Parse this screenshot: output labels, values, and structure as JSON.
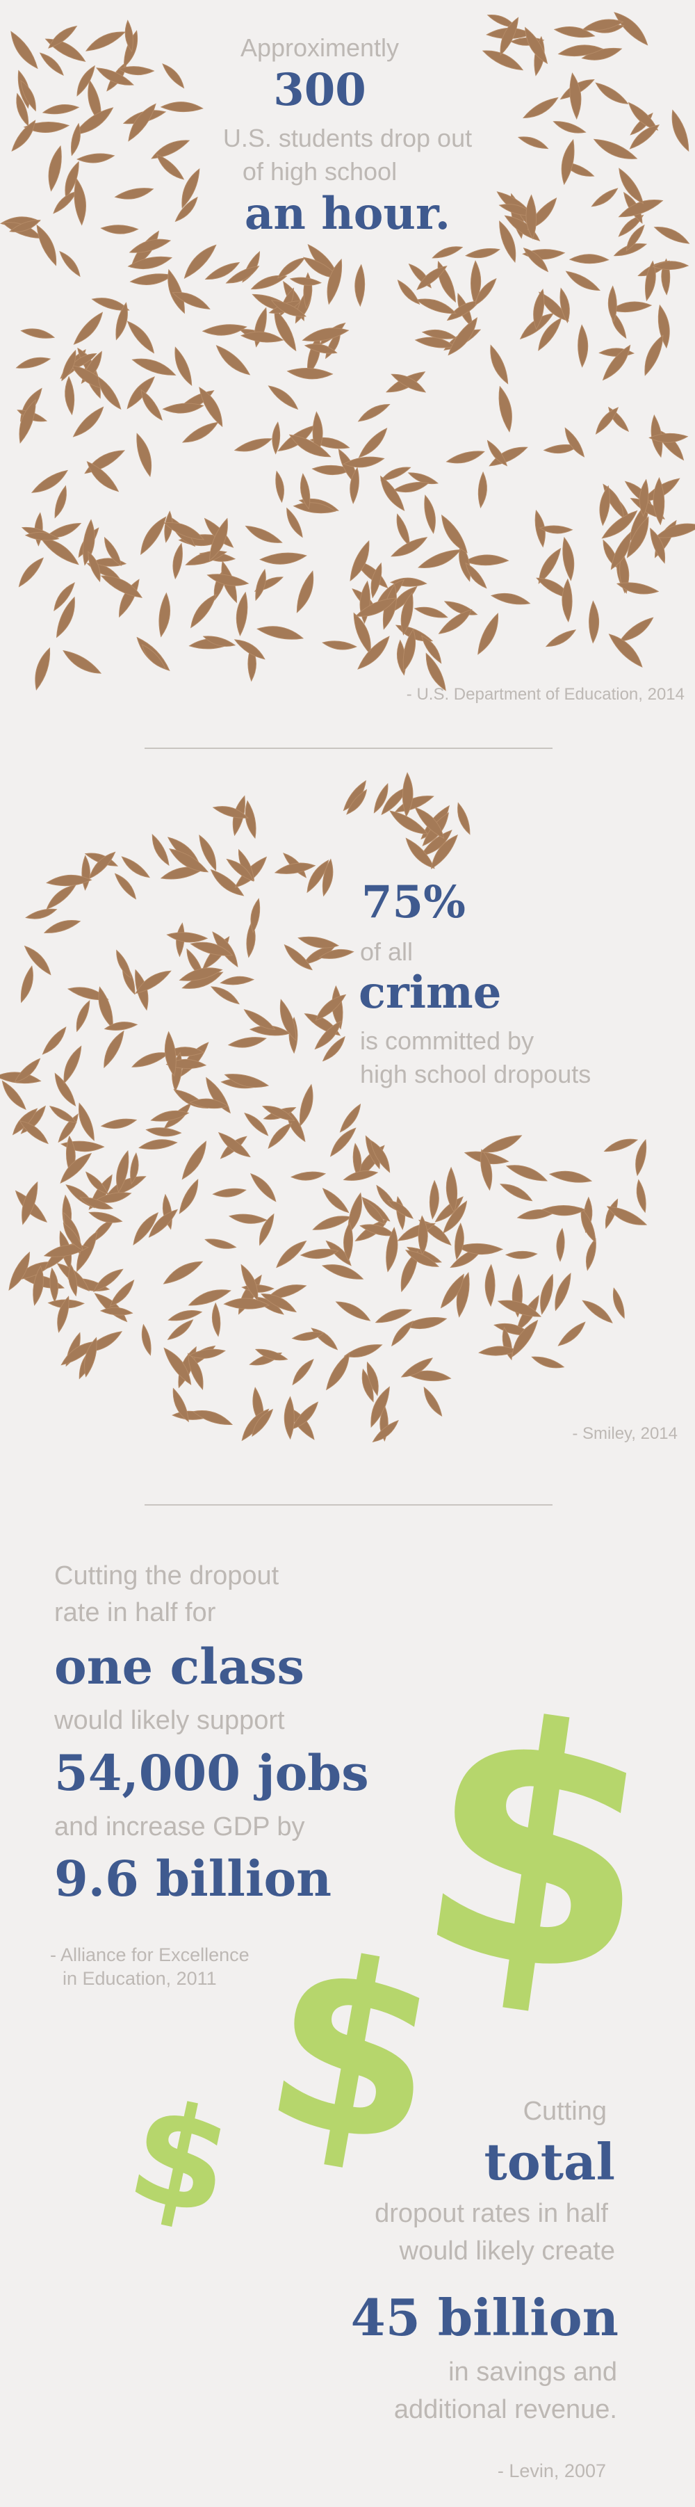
{
  "colors": {
    "background": "#f2f0ef",
    "leaf": "#a47a57",
    "accent_blue": "#3f5a8f",
    "light_text": "#bdb8b4",
    "dollar_green": "#b6d66c"
  },
  "section1": {
    "line1": "Approximently",
    "number": "300",
    "line2": "U.S. students drop out",
    "line3": "of high school",
    "emphasis": "an hour.",
    "source": "- U.S. Department of Education, 2014"
  },
  "section2": {
    "number": "75%",
    "line1": "of all",
    "emphasis": "crime",
    "line2": "is committed by",
    "line3": "high school dropouts",
    "source": "- Smiley, 2014"
  },
  "section3": {
    "line1": "Cutting the dropout",
    "line2": "rate in half for",
    "emphasis1": "one class",
    "line3": "would likely support",
    "emphasis2": "54,000 jobs",
    "line4": "and increase GDP by",
    "emphasis3": "9.6 billion",
    "source_line1": "- Alliance for Excellence",
    "source_line2": "in Education, 2011"
  },
  "section4": {
    "line1": "Cutting",
    "emphasis1": "total",
    "line2": "dropout rates in half",
    "line3": "would likely create",
    "emphasis2": "45 billion",
    "line4": "in savings and",
    "line5": "additional revenue.",
    "source": "- Levin, 2007"
  },
  "dollar_icons": [
    {
      "name": "large-dollar-icon",
      "glyph": "$"
    },
    {
      "name": "medium-dollar-icon",
      "glyph": "$"
    },
    {
      "name": "small-dollar-icon",
      "glyph": "$"
    }
  ]
}
